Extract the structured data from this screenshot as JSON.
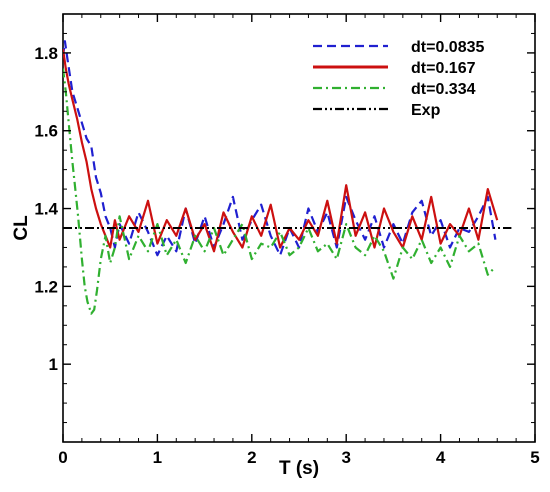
{
  "chart_data": {
    "type": "line",
    "xlabel": "T (s)",
    "ylabel": "CL",
    "xlim": [
      0,
      5
    ],
    "ylim": [
      0.8,
      1.9
    ],
    "xticks": [
      0,
      1,
      2,
      3,
      4,
      5
    ],
    "yticks": [
      1,
      1.2,
      1.4,
      1.6,
      1.8
    ],
    "grid": false,
    "legend_position": "top-right",
    "series": [
      {
        "name": "dt=0.0835",
        "color": "#2020d0",
        "dash": "dashed",
        "x": [
          0,
          0.02,
          0.05,
          0.1,
          0.15,
          0.2,
          0.25,
          0.3,
          0.35,
          0.4,
          0.45,
          0.5,
          0.55,
          0.6,
          0.7,
          0.8,
          0.9,
          1.0,
          1.1,
          1.2,
          1.3,
          1.4,
          1.5,
          1.6,
          1.7,
          1.8,
          1.9,
          2.0,
          2.1,
          2.2,
          2.3,
          2.4,
          2.5,
          2.6,
          2.7,
          2.8,
          2.9,
          3.0,
          3.1,
          3.2,
          3.3,
          3.4,
          3.5,
          3.6,
          3.7,
          3.8,
          3.9,
          4.0,
          4.1,
          4.2,
          4.3,
          4.4,
          4.5,
          4.58
        ],
        "y": [
          1.79,
          1.83,
          1.78,
          1.7,
          1.66,
          1.62,
          1.58,
          1.56,
          1.48,
          1.44,
          1.38,
          1.35,
          1.3,
          1.36,
          1.31,
          1.39,
          1.34,
          1.28,
          1.33,
          1.29,
          1.4,
          1.31,
          1.38,
          1.3,
          1.36,
          1.43,
          1.32,
          1.37,
          1.41,
          1.33,
          1.28,
          1.35,
          1.3,
          1.4,
          1.34,
          1.39,
          1.3,
          1.43,
          1.37,
          1.32,
          1.38,
          1.3,
          1.36,
          1.31,
          1.39,
          1.42,
          1.33,
          1.37,
          1.3,
          1.35,
          1.34,
          1.38,
          1.43,
          1.32
        ]
      },
      {
        "name": "dt=0.167",
        "color": "#cc1010",
        "dash": "solid",
        "x": [
          0,
          0.03,
          0.06,
          0.1,
          0.15,
          0.2,
          0.25,
          0.3,
          0.35,
          0.4,
          0.45,
          0.5,
          0.55,
          0.6,
          0.7,
          0.8,
          0.9,
          1.0,
          1.1,
          1.2,
          1.3,
          1.4,
          1.5,
          1.6,
          1.7,
          1.8,
          1.9,
          2.0,
          2.1,
          2.2,
          2.3,
          2.4,
          2.5,
          2.6,
          2.7,
          2.8,
          2.9,
          3.0,
          3.1,
          3.2,
          3.3,
          3.4,
          3.5,
          3.6,
          3.7,
          3.8,
          3.9,
          4.0,
          4.1,
          4.2,
          4.3,
          4.4,
          4.5,
          4.6
        ],
        "y": [
          1.81,
          1.76,
          1.72,
          1.68,
          1.63,
          1.57,
          1.52,
          1.45,
          1.4,
          1.36,
          1.33,
          1.3,
          1.37,
          1.32,
          1.38,
          1.34,
          1.42,
          1.31,
          1.37,
          1.33,
          1.4,
          1.32,
          1.36,
          1.29,
          1.39,
          1.34,
          1.3,
          1.38,
          1.33,
          1.41,
          1.3,
          1.35,
          1.32,
          1.37,
          1.33,
          1.42,
          1.31,
          1.46,
          1.33,
          1.39,
          1.3,
          1.4,
          1.34,
          1.3,
          1.38,
          1.32,
          1.43,
          1.31,
          1.36,
          1.33,
          1.4,
          1.32,
          1.45,
          1.37
        ]
      },
      {
        "name": "dt=0.334",
        "color": "#30b030",
        "dash": "dashdot",
        "x": [
          0,
          0.03,
          0.06,
          0.1,
          0.13,
          0.16,
          0.2,
          0.23,
          0.26,
          0.3,
          0.33,
          0.36,
          0.4,
          0.45,
          0.5,
          0.55,
          0.6,
          0.7,
          0.8,
          0.9,
          1.0,
          1.1,
          1.2,
          1.3,
          1.4,
          1.5,
          1.6,
          1.7,
          1.8,
          1.9,
          2.0,
          2.1,
          2.2,
          2.3,
          2.4,
          2.5,
          2.6,
          2.7,
          2.8,
          2.9,
          3.0,
          3.1,
          3.2,
          3.3,
          3.4,
          3.5,
          3.6,
          3.7,
          3.8,
          3.9,
          4.0,
          4.1,
          4.2,
          4.3,
          4.4,
          4.5,
          4.58
        ],
        "y": [
          1.76,
          1.7,
          1.62,
          1.52,
          1.45,
          1.38,
          1.27,
          1.2,
          1.16,
          1.13,
          1.14,
          1.19,
          1.27,
          1.33,
          1.26,
          1.3,
          1.38,
          1.27,
          1.33,
          1.29,
          1.36,
          1.28,
          1.32,
          1.26,
          1.33,
          1.29,
          1.35,
          1.28,
          1.32,
          1.36,
          1.27,
          1.31,
          1.3,
          1.34,
          1.28,
          1.3,
          1.35,
          1.29,
          1.31,
          1.27,
          1.36,
          1.3,
          1.28,
          1.33,
          1.29,
          1.22,
          1.3,
          1.27,
          1.32,
          1.26,
          1.3,
          1.25,
          1.33,
          1.29,
          1.31,
          1.23,
          1.25
        ]
      },
      {
        "name": "Exp",
        "color": "#000000",
        "dash": "dashdotdot",
        "x": [
          0,
          4.75
        ],
        "y": [
          1.35,
          1.35
        ]
      }
    ]
  }
}
